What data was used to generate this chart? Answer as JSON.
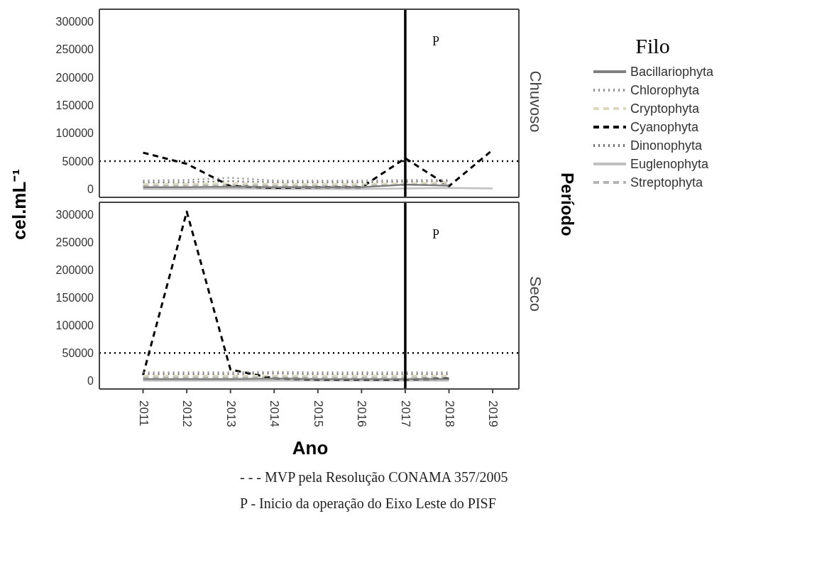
{
  "chart_data": [
    {
      "type": "line",
      "title": "Chuvoso",
      "ylabel": "cel.mL⁻¹",
      "y2label": "Período",
      "legend_title": "Filo",
      "legend": "right",
      "tick_labels": "y",
      "x": [
        2011,
        2012,
        2013,
        2014,
        2015,
        2016,
        2017,
        2018,
        2019
      ],
      "xlim": [
        2010,
        2019.6
      ],
      "xticks": [
        2011,
        2012,
        2013,
        2014,
        2015,
        2016,
        2017,
        2018,
        2019
      ],
      "ylim": [
        -15000,
        322000
      ],
      "yticks": [
        0,
        50000,
        100000,
        150000,
        200000,
        250000,
        300000
      ],
      "series": [
        {
          "name": "Bacillariophyta",
          "color": "#808080",
          "line_style": "solid",
          "values": [
            3000,
            3000,
            4000,
            3000,
            3000,
            3000,
            8000,
            6000,
            null
          ]
        },
        {
          "name": "Chlorophyta",
          "color": "#909090",
          "line_style": "dotted",
          "values": [
            15000,
            16000,
            20000,
            15000,
            15000,
            15000,
            16000,
            16000,
            null
          ]
        },
        {
          "name": "Cryptophyta",
          "color": "#ddd8c0",
          "line_style": "dashed",
          "values": [
            9000,
            9000,
            10000,
            9000,
            9000,
            9000,
            10000,
            12000,
            null
          ]
        },
        {
          "name": "Cyanophyta",
          "color": "#000000",
          "line_style": "dashed",
          "values": [
            65000,
            45000,
            5000,
            2000,
            3000,
            3000,
            55000,
            5000,
            70000
          ]
        },
        {
          "name": "Dinonophyta",
          "color": "#707070",
          "line_style": "dotted",
          "values": [
            12000,
            12000,
            14000,
            12000,
            12000,
            12000,
            13000,
            14000,
            null
          ]
        },
        {
          "name": "Euglenophyta",
          "color": "#c0c0c0",
          "line_style": "solid",
          "values": [
            0,
            0,
            1000,
            0,
            0,
            0,
            1000,
            2000,
            1000
          ]
        },
        {
          "name": "Streptophyta",
          "color": "#b4b4b4",
          "line_style": "dashed",
          "values": [
            6000,
            6000,
            7000,
            6000,
            6000,
            6000,
            7000,
            10000,
            null
          ]
        }
      ],
      "ref_lines": [
        {
          "axis": "y",
          "value": 50000,
          "label": null,
          "color": "#000000",
          "line_style": "dotted"
        },
        {
          "axis": "x",
          "value": 2017,
          "label": "P",
          "color": "#000000",
          "line_style": "solid"
        }
      ]
    },
    {
      "type": "line",
      "title": "Seco",
      "xlabel": "Ano",
      "x": [
        2011,
        2012,
        2013,
        2014,
        2015,
        2016,
        2017,
        2018
      ],
      "xlim": [
        2010,
        2019.6
      ],
      "xticks": [
        2011,
        2012,
        2013,
        2014,
        2015,
        2016,
        2017,
        2018,
        2019
      ],
      "ylim": [
        -15000,
        322000
      ],
      "yticks": [
        0,
        50000,
        100000,
        150000,
        200000,
        250000,
        300000
      ],
      "series": [
        {
          "color": "#808080",
          "line_style": "solid",
          "values": [
            3000,
            3000,
            3000,
            4000,
            3000,
            3000,
            3000,
            3000
          ]
        },
        {
          "color": "#909090",
          "line_style": "dotted",
          "values": [
            15000,
            15000,
            15000,
            16000,
            15000,
            15000,
            15000,
            15000
          ]
        },
        {
          "color": "#ddd8c0",
          "line_style": "dashed",
          "values": [
            9000,
            9000,
            9000,
            9000,
            9000,
            9000,
            9000,
            9000
          ]
        },
        {
          "color": "#000000",
          "line_style": "dashed",
          "values": [
            10000,
            305000,
            20000,
            4000,
            2000,
            2000,
            2000,
            4000
          ]
        },
        {
          "color": "#707070",
          "line_style": "dotted",
          "values": [
            12000,
            12000,
            12000,
            13000,
            12000,
            12000,
            12000,
            12000
          ]
        },
        {
          "color": "#c0c0c0",
          "line_style": "solid",
          "values": [
            0,
            0,
            0,
            0,
            0,
            0,
            0,
            0
          ]
        },
        {
          "color": "#b4b4b4",
          "line_style": "dashed",
          "values": [
            6000,
            6000,
            6000,
            7000,
            6000,
            6000,
            6000,
            6000
          ]
        }
      ],
      "ref_lines": [
        {
          "axis": "y",
          "value": 50000,
          "label": null,
          "color": "#000000",
          "line_style": "dotted"
        },
        {
          "axis": "x",
          "value": 2017,
          "label": "P",
          "color": "#000000",
          "line_style": "solid"
        }
      ],
      "annotations": [
        "- - - MVP pela Resolução CONAMA 357/2005",
        "P - Inicio da operação do Eixo Leste do PISF"
      ]
    }
  ]
}
